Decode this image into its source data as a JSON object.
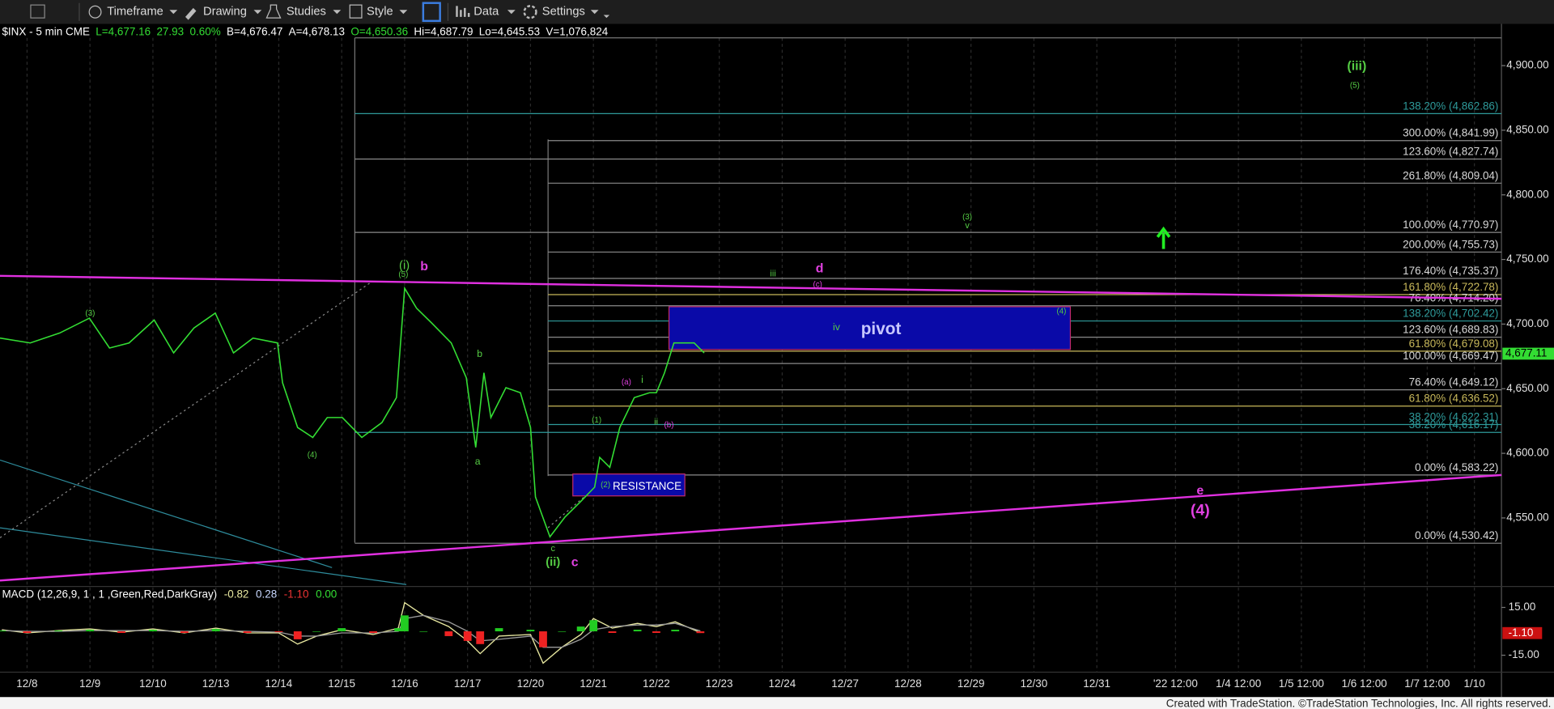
{
  "toolbar": [
    "Timeframe",
    "Drawing",
    "Studies",
    "Style",
    "Data",
    "Settings"
  ],
  "chart_data": [
    {
      "type": "line",
      "symbol_bar": [
        "$INX - 5 min  CME",
        "L=4,677.16",
        "27.93",
        "0.60%",
        "B=4,676.47",
        "A=4,678.13",
        "O=4,650.36",
        "Hi=4,687.79",
        "Lo=4,645.53",
        "V=1,076,824"
      ],
      "x": [
        -0.43,
        0.05,
        0.52,
        0.99,
        1.31,
        1.62,
        2.02,
        2.33,
        2.65,
        2.99,
        3.28,
        3.59,
        3.98,
        4.06,
        4.3,
        4.54,
        4.77,
        5.01,
        5.32,
        5.64,
        5.87,
        6.0,
        6.19,
        6.43,
        6.74,
        6.98,
        7.13,
        7.26,
        7.37,
        7.61,
        7.84,
        8.0,
        8.08,
        8.31,
        8.55,
        8.79,
        9.02,
        9.1,
        9.26,
        9.42,
        9.65,
        9.89,
        10.0,
        10.13,
        10.28,
        10.6,
        10.76
      ],
      "series": [
        {
          "color": "#33dd33",
          "values": [
            4689.2,
            4685.4,
            4693.1,
            4704.6,
            4681.5,
            4685.4,
            4703.1,
            4677.7,
            4696.9,
            4708.5,
            4677.7,
            4689.2,
            4685.4,
            4654.6,
            4620.0,
            4612.3,
            4627.7,
            4627.7,
            4612.3,
            4623.8,
            4643.1,
            4727.7,
            4712.3,
            4700.8,
            4685.4,
            4658.5,
            4604.6,
            4662.3,
            4627.7,
            4650.8,
            4646.9,
            4620.0,
            4566.2,
            4535.4,
            4550.8,
            4562.3,
            4573.8,
            4596.9,
            4589.2,
            4620.0,
            4643.1,
            4646.9,
            4646.9,
            4662.3,
            4685.4,
            4685.4,
            4677.7
          ]
        }
      ],
      "xlim": [
        -0.43,
        23.43
      ],
      "xticks": [
        {
          "value": 0,
          "label": "12/8"
        },
        {
          "value": 1,
          "label": "12/9"
        },
        {
          "value": 2,
          "label": "12/10"
        },
        {
          "value": 3,
          "label": "12/13"
        },
        {
          "value": 4,
          "label": "12/14"
        },
        {
          "value": 5,
          "label": "12/15"
        },
        {
          "value": 6,
          "label": "12/16"
        },
        {
          "value": 7,
          "label": "12/17"
        },
        {
          "value": 8,
          "label": "12/20"
        },
        {
          "value": 9,
          "label": "12/21"
        },
        {
          "value": 10,
          "label": "12/22"
        },
        {
          "value": 11,
          "label": "12/23"
        },
        {
          "value": 12,
          "label": "12/24"
        },
        {
          "value": 13,
          "label": "12/27"
        },
        {
          "value": 14,
          "label": "12/28"
        },
        {
          "value": 15,
          "label": "12/29"
        },
        {
          "value": 16,
          "label": "12/30"
        },
        {
          "value": 17,
          "label": "12/31"
        },
        {
          "value": 18.25,
          "label": "'22 12:00"
        },
        {
          "value": 19.25,
          "label": "1/4 12:00"
        },
        {
          "value": 20.25,
          "label": "1/5 12:00"
        },
        {
          "value": 21.25,
          "label": "1/6 12:00"
        },
        {
          "value": 22.25,
          "label": "1/7 12:00"
        },
        {
          "value": 23,
          "label": "1/10"
        }
      ],
      "ylim": [
        4497.7,
        4921.5
      ],
      "yticks": [
        {
          "value": 4550,
          "label": "4,550.00"
        },
        {
          "value": 4600,
          "label": "4,600.00"
        },
        {
          "value": 4650,
          "label": "4,650.00"
        },
        {
          "value": 4700,
          "label": "4,700.00"
        },
        {
          "value": 4750,
          "label": "4,750.00"
        },
        {
          "value": 4800,
          "label": "4,800.00"
        },
        {
          "value": 4850,
          "label": "4,850.00"
        },
        {
          "value": 4900,
          "label": "4,900.00"
        }
      ],
      "last_value": {
        "value": 4677.11,
        "label": "4,677.11"
      },
      "levels": [
        {
          "value": 4862.86,
          "label": "138.20% (4,862.86)",
          "color": "#2e9a9a"
        },
        {
          "value": 4841.99,
          "label": "300.00% (4,841.99)",
          "color": "#d8d8d8"
        },
        {
          "value": 4827.74,
          "label": "123.60% (4,827.74)",
          "color": "#d8d8d8"
        },
        {
          "value": 4809.04,
          "label": "261.80% (4,809.04)",
          "color": "#d8d8d8"
        },
        {
          "value": 4770.97,
          "label": "100.00% (4,770.97)",
          "color": "#d8d8d8"
        },
        {
          "value": 4755.73,
          "label": "200.00% (4,755.73)",
          "color": "#d8d8d8"
        },
        {
          "value": 4735.37,
          "label": "176.40% (4,735.37)",
          "color": "#d8d8d8"
        },
        {
          "value": 4722.78,
          "label": "161.80% (4,722.78)",
          "color": "#c8b85a"
        },
        {
          "value": 4714.2,
          "label": "76.40% (4,714.20)",
          "color": "#d8d8d8"
        },
        {
          "value": 4702.42,
          "label": "138.20% (4,702.42)",
          "color": "#2e9a9a"
        },
        {
          "value": 4689.83,
          "label": "123.60% (4,689.83)",
          "color": "#d8d8d8"
        },
        {
          "value": 4679.08,
          "label": "61.80% (4,679.08)",
          "color": "#c8b85a"
        },
        {
          "value": 4669.47,
          "label": "100.00% (4,669.47)",
          "color": "#d8d8d8"
        },
        {
          "value": 4649.12,
          "label": "76.40% (4,649.12)",
          "color": "#d8d8d8"
        },
        {
          "value": 4636.52,
          "label": "61.80% (4,636.52)",
          "color": "#c8b85a"
        },
        {
          "value": 4622.31,
          "label": "38.20% (4,622.31)",
          "color": "#2e9a9a"
        },
        {
          "value": 4616.17,
          "label": "38.20% (4,616.17)",
          "color": "#2e9a9a"
        },
        {
          "value": 4583.22,
          "label": "0.00% (4,583.22)",
          "color": "#d8d8d8"
        },
        {
          "value": 4530.42,
          "label": "0.00% (4,530.42)",
          "color": "#d8d8d8"
        }
      ],
      "annotations": [
        "(iii)",
        "(5)",
        "(3)",
        "v",
        "(i)",
        "(5)",
        "b",
        "d",
        "iii",
        "(c)",
        "(3)",
        "(4)",
        "iv",
        "pivot",
        "b",
        "(a)",
        "i",
        "ii",
        "(b)",
        "(1)",
        "a",
        "(4)",
        "(2)",
        "RESISTANCE",
        "c",
        "(ii)",
        "c",
        "e",
        "(4)"
      ]
    },
    {
      "type": "macd",
      "title": "MACD (12,26,9, 1 , 1 ,Green,Red,DarkGray)",
      "readouts": [
        "-0.82",
        "0.28",
        "-1.10",
        "0.00"
      ],
      "x": [
        -0.4,
        0,
        0.5,
        1,
        1.5,
        2,
        2.5,
        3,
        3.5,
        4,
        4.3,
        4.6,
        5,
        5.5,
        5.9,
        6,
        6.3,
        6.7,
        7,
        7.2,
        7.5,
        8,
        8.2,
        8.5,
        8.8,
        9,
        9.3,
        9.7,
        10,
        10.3,
        10.7
      ],
      "series": [
        {
          "color": "#e8e8a0",
          "values": [
            1,
            -1,
            0.5,
            1.5,
            -0.5,
            1.5,
            -1,
            2,
            -1,
            -1,
            -8,
            -3,
            1,
            -2,
            2,
            18,
            10,
            3,
            -6,
            -14,
            -3,
            -2,
            -20,
            -10,
            -2,
            8,
            2,
            5,
            3,
            6,
            -0.82
          ]
        },
        {
          "color": "#9a9a9a",
          "values": [
            0.5,
            0,
            0,
            0.5,
            0.5,
            0.5,
            0,
            0.5,
            0,
            -0.5,
            -3,
            -3,
            -1,
            -1,
            0,
            8,
            10,
            6,
            0,
            -6,
            -5,
            -3,
            -10,
            -10,
            -5,
            1,
            3,
            4,
            4,
            5,
            0.28
          ]
        },
        {
          "type": "bar",
          "color": "#22cc22",
          "negative_color": "#ee2222",
          "values": [
            0.5,
            -1,
            0.5,
            1,
            -1,
            1,
            -1,
            1.5,
            -1,
            -0.5,
            -5,
            0,
            2,
            -1,
            2,
            10,
            0,
            -3,
            -6,
            -8,
            2,
            1,
            -10,
            0,
            3,
            7,
            -1,
            1,
            -1,
            1,
            -1.1
          ]
        }
      ],
      "xlim": [
        -0.43,
        23.43
      ],
      "ylim": [
        -23.75,
        26.25
      ],
      "yticks": [
        {
          "value": 15,
          "label": "15.00"
        },
        {
          "value": -15,
          "label": "-15.00"
        }
      ],
      "last_value": {
        "value": -1.1,
        "label": "-1.10"
      }
    }
  ],
  "footer": "Created with TradeStation. ©TradeStation Technologies, Inc. All rights reserved."
}
